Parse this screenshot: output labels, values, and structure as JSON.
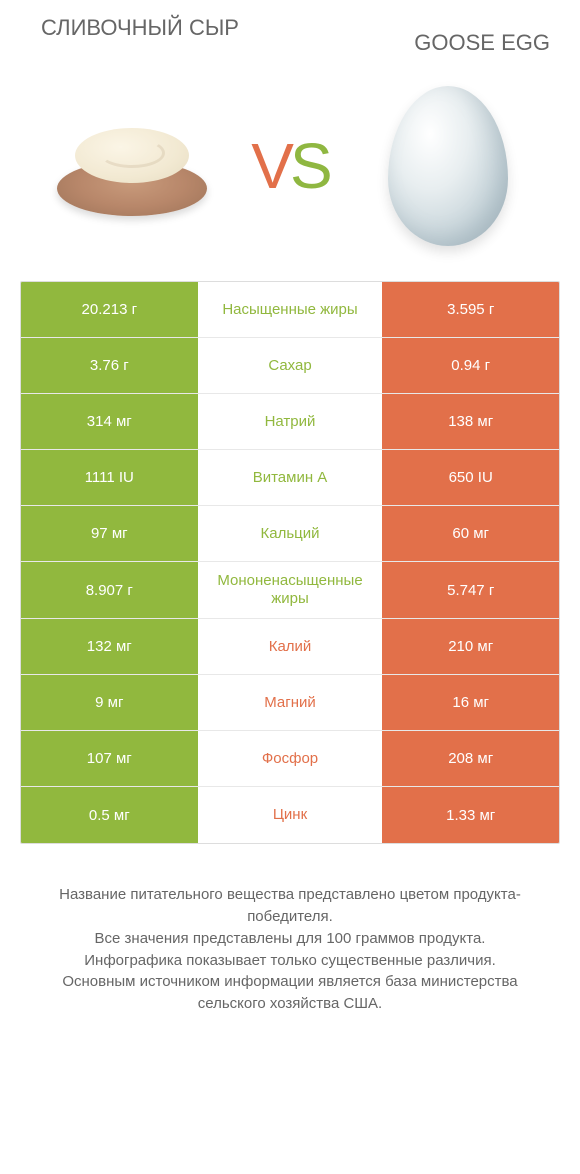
{
  "colors": {
    "green": "#91b83e",
    "orange": "#e2704a",
    "text": "#666666",
    "border": "#dddddd"
  },
  "header": {
    "left_title": "СЛИВОЧНЫЙ СЫР",
    "right_title": "GOOSE EGG",
    "vs_v": "V",
    "vs_s": "S"
  },
  "rows": [
    {
      "left": "20.213 г",
      "label": "Насыщенные жиры",
      "right": "3.595 г",
      "winner": "left"
    },
    {
      "left": "3.76 г",
      "label": "Сахар",
      "right": "0.94 г",
      "winner": "left"
    },
    {
      "left": "314 мг",
      "label": "Натрий",
      "right": "138 мг",
      "winner": "left"
    },
    {
      "left": "1111 IU",
      "label": "Витамин A",
      "right": "650 IU",
      "winner": "left"
    },
    {
      "left": "97 мг",
      "label": "Кальций",
      "right": "60 мг",
      "winner": "left"
    },
    {
      "left": "8.907 г",
      "label": "Мононенасыщенные жиры",
      "right": "5.747 г",
      "winner": "left"
    },
    {
      "left": "132 мг",
      "label": "Калий",
      "right": "210 мг",
      "winner": "right"
    },
    {
      "left": "9 мг",
      "label": "Магний",
      "right": "16 мг",
      "winner": "right"
    },
    {
      "left": "107 мг",
      "label": "Фосфор",
      "right": "208 мг",
      "winner": "right"
    },
    {
      "left": "0.5 мг",
      "label": "Цинк",
      "right": "1.33 мг",
      "winner": "right"
    }
  ],
  "footer": {
    "line1": "Название питательного вещества представлено цветом продукта-победителя.",
    "line2": "Все значения представлены для 100 граммов продукта.",
    "line3": "Инфографика показывает только существенные различия.",
    "line4": "Основным источником информации является база министерства сельского хозяйства США."
  }
}
